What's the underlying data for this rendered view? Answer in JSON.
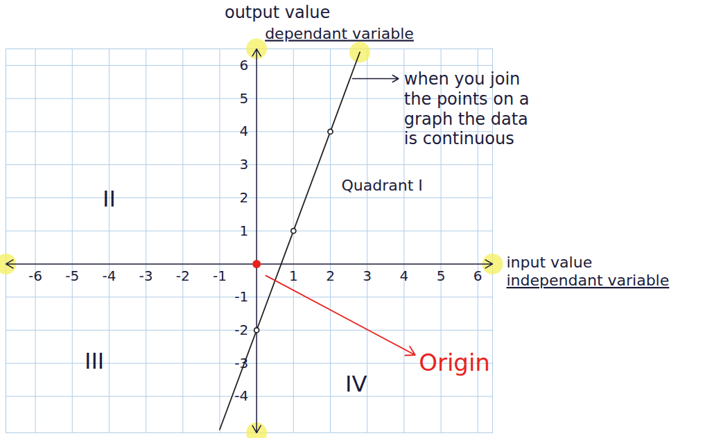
{
  "chart_data": {
    "type": "line",
    "xlabel": [
      "input value",
      "independant variable"
    ],
    "ylabel": [
      "output value",
      "dependant variable"
    ],
    "x": [
      -1,
      0,
      1,
      2,
      2.8
    ],
    "values": [
      -5,
      -2,
      1,
      4,
      6.4
    ],
    "color": "#222222",
    "points": {
      "x": [
        0,
        1,
        2
      ],
      "y": [
        -2,
        1,
        4
      ]
    },
    "marker": "circle",
    "xlim": [
      -6.8,
      6.4
    ],
    "xticks": [
      -6,
      -5,
      -4,
      -3,
      -2,
      -1,
      1,
      2,
      3,
      4,
      5,
      6
    ],
    "ylim": [
      -5.1,
      6.5
    ],
    "yticks": [
      -4,
      -3,
      -2,
      -1,
      1,
      2,
      3,
      4,
      5,
      6
    ],
    "grid": true,
    "annotations": [
      {
        "text": "when you join the points on a graph the data is continuous"
      },
      {
        "text": "Quadrant I"
      },
      {
        "text": "II"
      },
      {
        "text": "III"
      },
      {
        "text": "IV"
      },
      {
        "text": "Origin",
        "color": "#e8231f",
        "point": [
          0,
          0
        ]
      }
    ]
  }
}
